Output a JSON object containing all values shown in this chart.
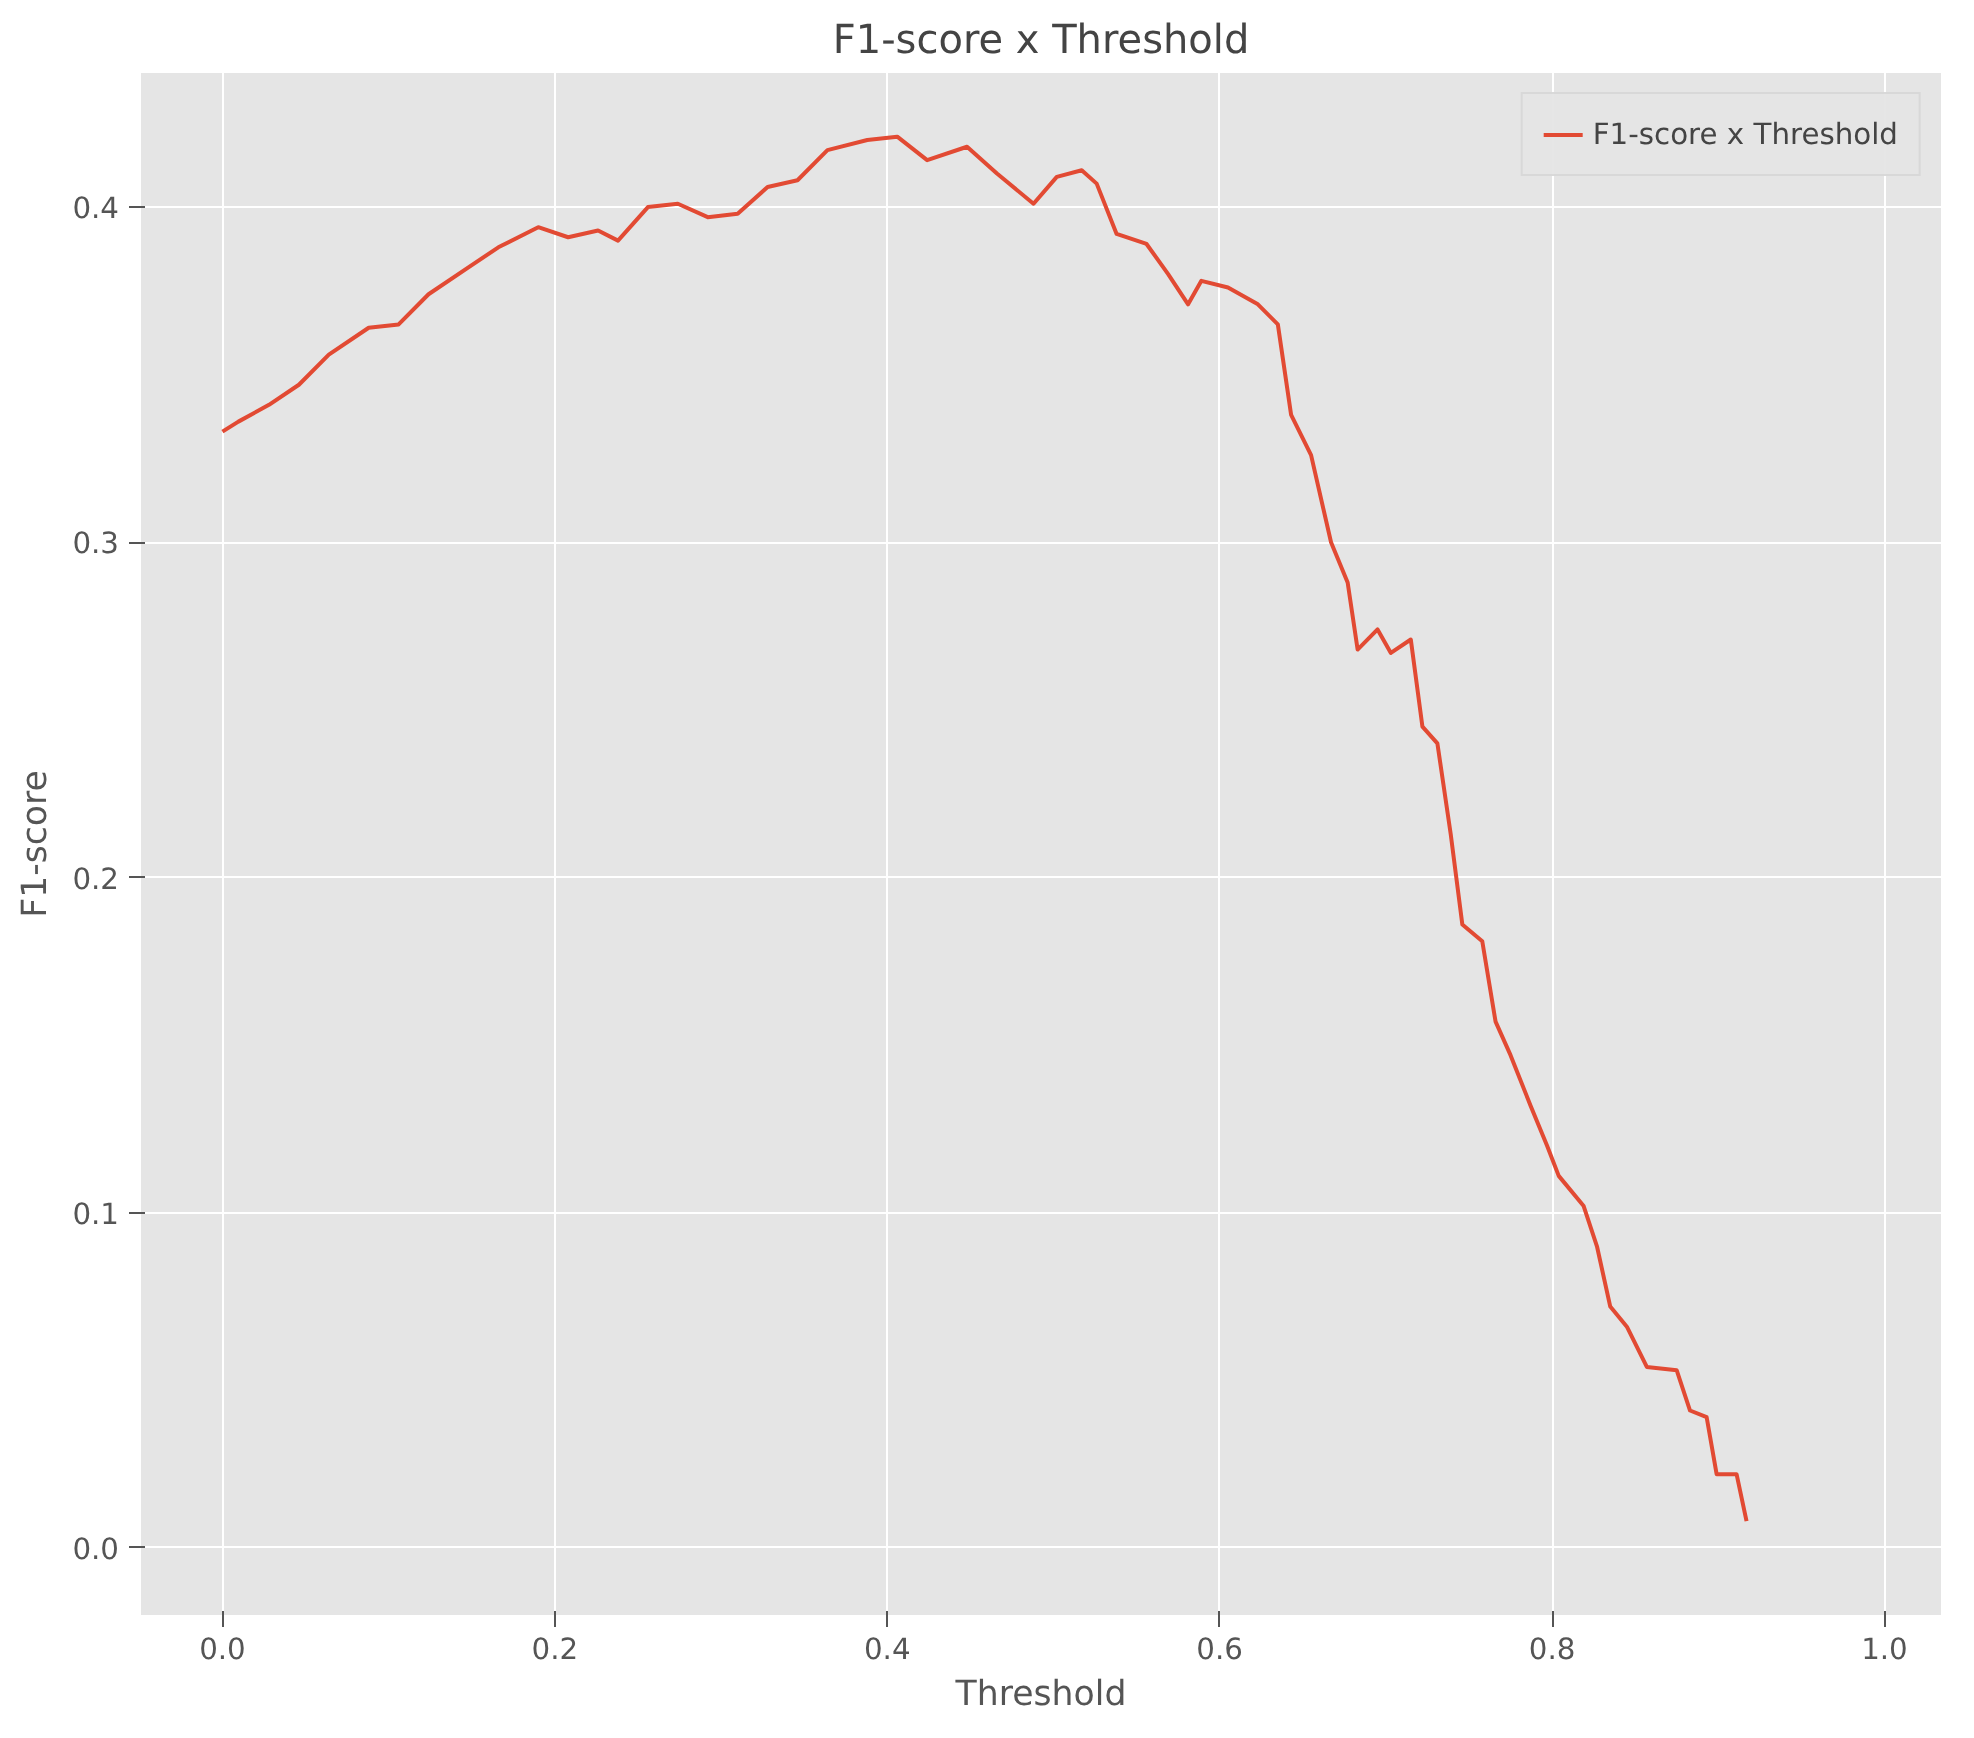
{
  "chart_data": {
    "type": "line",
    "title": "F1-score x Threshold",
    "xlabel": "Threshold",
    "ylabel": "F1-score",
    "xlim": [
      -0.049,
      1.034
    ],
    "ylim": [
      -0.02,
      0.44
    ],
    "xticks": [
      {
        "value": 0,
        "label": "0.0"
      },
      0.2,
      0.4,
      0.6,
      0.8,
      {
        "value": 1,
        "label": "1.0"
      }
    ],
    "yticks": [
      {
        "value": 0,
        "label": "0.0"
      },
      0.1,
      0.2,
      0.3,
      0.4
    ],
    "grid": true,
    "legend": "top right",
    "series": [
      {
        "name": "F1-score x Threshold",
        "color": "#e24a33",
        "x": [
          0,
          0.0096,
          0.028,
          0.046,
          0.064,
          0.088,
          0.106,
          0.124,
          0.148,
          0.166,
          0.19,
          0.208,
          0.226,
          0.238,
          0.256,
          0.274,
          0.292,
          0.31,
          0.328,
          0.346,
          0.364,
          0.388,
          0.406,
          0.424,
          0.448,
          0.466,
          0.488,
          0.502,
          0.517,
          0.526,
          0.538,
          0.556,
          0.569,
          0.581,
          0.589,
          0.605,
          0.623,
          0.635,
          0.643,
          0.655,
          0.667,
          0.677,
          0.683,
          0.695,
          0.703,
          0.715,
          0.722,
          0.731,
          0.739,
          0.746,
          0.758,
          0.766,
          0.775,
          0.787,
          0.797,
          0.804,
          0.819,
          0.827,
          0.835,
          0.845,
          0.857,
          0.875,
          0.883,
          0.893,
          0.899,
          0.911,
          0.917
        ],
        "values": [
          0.333,
          0.336,
          0.341,
          0.347,
          0.356,
          0.364,
          0.365,
          0.374,
          0.382,
          0.388,
          0.394,
          0.391,
          0.393,
          0.39,
          0.4,
          0.401,
          0.397,
          0.398,
          0.406,
          0.408,
          0.417,
          0.42,
          0.421,
          0.414,
          0.418,
          0.41,
          0.401,
          0.409,
          0.411,
          0.407,
          0.392,
          0.389,
          0.38,
          0.371,
          0.378,
          0.376,
          0.371,
          0.365,
          0.338,
          0.326,
          0.3,
          0.288,
          0.268,
          0.274,
          0.267,
          0.271,
          0.245,
          0.24,
          0.213,
          0.186,
          0.181,
          0.157,
          0.147,
          0.132,
          0.12,
          0.111,
          0.102,
          0.09,
          0.072,
          0.066,
          0.054,
          0.053,
          0.041,
          0.039,
          0.022,
          0.022,
          0.008
        ]
      }
    ]
  }
}
